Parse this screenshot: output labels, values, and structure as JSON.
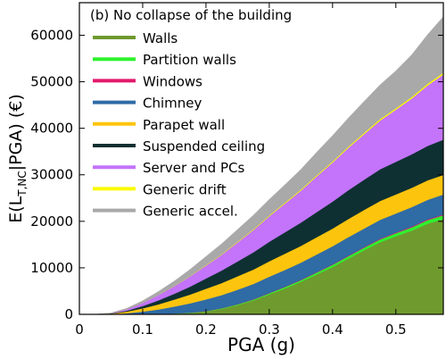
{
  "chart_data": {
    "type": "area",
    "stacked": true,
    "title": "(b) No collapse of the building",
    "xlabel": "PGA (g)",
    "ylabel_main": "E(L",
    "ylabel_sub": "T,NC",
    "ylabel_tail": "|PGA) (€)",
    "xlim": [
      0,
      0.575
    ],
    "ylim": [
      0,
      67000
    ],
    "xticks": [
      0,
      0.1,
      0.2,
      0.3,
      0.4,
      0.5
    ],
    "xtick_labels": [
      "0",
      "0.1",
      "0.2",
      "0.3",
      "0.4",
      "0.5"
    ],
    "yticks": [
      0,
      10000,
      20000,
      30000,
      40000,
      50000,
      60000
    ],
    "ytick_labels": [
      "0",
      "10000",
      "20000",
      "30000",
      "40000",
      "50000",
      "60000"
    ],
    "legend_position": "top-left",
    "x": [
      0,
      0.025,
      0.05,
      0.075,
      0.1,
      0.125,
      0.15,
      0.175,
      0.2,
      0.225,
      0.25,
      0.275,
      0.3,
      0.325,
      0.35,
      0.375,
      0.4,
      0.425,
      0.45,
      0.475,
      0.5,
      0.525,
      0.55,
      0.575
    ],
    "series": [
      {
        "name": "Walls",
        "color": "#6f9a2e",
        "values": [
          0,
          0,
          0,
          0,
          0,
          50,
          150,
          300,
          600,
          1200,
          2000,
          3000,
          4300,
          5600,
          7000,
          8600,
          10200,
          12000,
          13800,
          15500,
          16800,
          18000,
          19500,
          20500
        ]
      },
      {
        "name": "Partition walls",
        "color": "#2ef22e",
        "values": [
          0,
          0,
          0,
          0,
          0,
          20,
          40,
          60,
          90,
          120,
          160,
          200,
          250,
          300,
          350,
          400,
          450,
          500,
          550,
          600,
          650,
          700,
          750,
          800
        ]
      },
      {
        "name": "Windows",
        "color": "#e3196c",
        "values": [
          0,
          0,
          0,
          0,
          0,
          0,
          10,
          20,
          30,
          40,
          50,
          60,
          70,
          80,
          90,
          100,
          110,
          120,
          130,
          140,
          150,
          160,
          170,
          180
        ]
      },
      {
        "name": "Chimney",
        "color": "#2f6ba5",
        "values": [
          0,
          0,
          50,
          250,
          600,
          1000,
          1500,
          2000,
          2500,
          2800,
          3100,
          3300,
          3500,
          3600,
          3700,
          3800,
          3900,
          4000,
          4000,
          4100,
          4100,
          4200,
          4200,
          4300
        ]
      },
      {
        "name": "Parapet wall",
        "color": "#fdc40e",
        "values": [
          0,
          0,
          100,
          350,
          700,
          1100,
          1500,
          1900,
          2300,
          2600,
          2900,
          3100,
          3300,
          3500,
          3600,
          3700,
          3800,
          3900,
          4000,
          4050,
          4100,
          4150,
          4200,
          4200
        ]
      },
      {
        "name": "Suspended ceiling",
        "color": "#0e3032",
        "values": [
          0,
          0,
          50,
          200,
          500,
          850,
          1250,
          1700,
          2200,
          2700,
          3200,
          3700,
          4200,
          4600,
          5000,
          5400,
          5800,
          6200,
          6500,
          6800,
          7000,
          7200,
          7400,
          7600
        ]
      },
      {
        "name": "Server and PCs",
        "color": "#c374fa",
        "values": [
          0,
          0,
          50,
          300,
          700,
          1150,
          1650,
          2200,
          2800,
          3400,
          4100,
          4800,
          5500,
          6200,
          6900,
          7700,
          8400,
          9100,
          9800,
          10500,
          11200,
          12000,
          13000,
          14000
        ]
      },
      {
        "name": "Generic drift",
        "color": "#fafa00",
        "values": [
          0,
          0,
          0,
          0,
          10,
          20,
          40,
          60,
          80,
          100,
          120,
          140,
          160,
          180,
          200,
          220,
          240,
          260,
          280,
          300,
          320,
          340,
          360,
          380
        ]
      },
      {
        "name": "Generic accel.",
        "color": "#a9a9a9",
        "values": [
          0,
          0,
          50,
          200,
          400,
          700,
          1000,
          1400,
          1800,
          2200,
          2600,
          3000,
          3400,
          3800,
          4300,
          4900,
          5500,
          6100,
          6700,
          7300,
          8000,
          9000,
          10500,
          12000
        ]
      }
    ]
  }
}
